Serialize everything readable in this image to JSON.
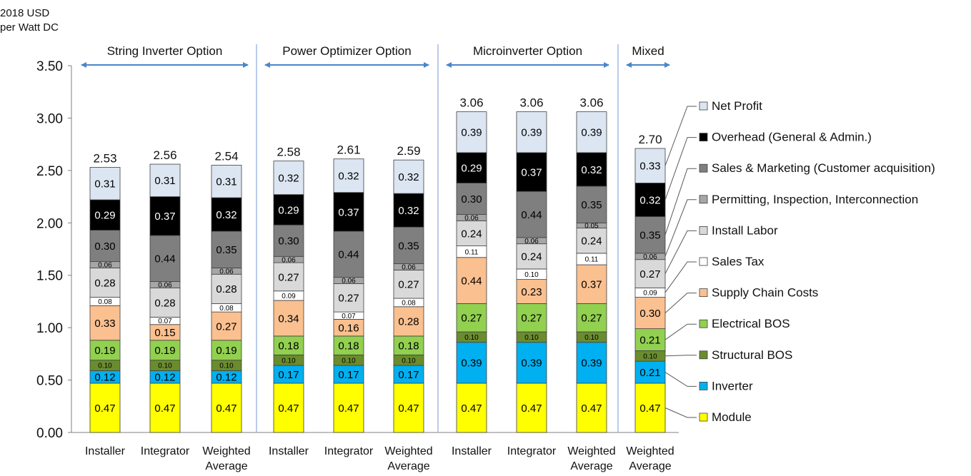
{
  "chart_data": {
    "type": "bar",
    "stacked": true,
    "ylabel_lines": [
      "2018 USD",
      "per Watt DC"
    ],
    "ylim": [
      0,
      3.5
    ],
    "yticks": [
      "0.00",
      "0.50",
      "1.00",
      "1.50",
      "2.00",
      "2.50",
      "3.00",
      "3.50"
    ],
    "groups": [
      {
        "label": "String Inverter Option",
        "bars": [
          0,
          1,
          2
        ]
      },
      {
        "label": "Power Optimizer Option",
        "bars": [
          3,
          4,
          5
        ]
      },
      {
        "label": "Microinverter Option",
        "bars": [
          6,
          7,
          8
        ]
      },
      {
        "label": "Mixed",
        "bars": [
          9
        ]
      }
    ],
    "categories": [
      [
        "Installer"
      ],
      [
        "Integrator"
      ],
      [
        "Weighted",
        "Average"
      ],
      [
        "Installer"
      ],
      [
        "Integrator"
      ],
      [
        "Weighted",
        "Average"
      ],
      [
        "Installer"
      ],
      [
        "Integrator"
      ],
      [
        "Weighted",
        "Average"
      ],
      [
        "Weighted",
        "Average"
      ]
    ],
    "totals": [
      "2.53",
      "2.56",
      "2.54",
      "2.58",
      "2.61",
      "2.59",
      "3.06",
      "3.06",
      "3.06",
      "2.70"
    ],
    "series": [
      {
        "name": "Module",
        "color": "#ffff00",
        "small": false,
        "values": [
          0.47,
          0.47,
          0.47,
          0.47,
          0.47,
          0.47,
          0.47,
          0.47,
          0.47,
          0.47
        ],
        "labels": [
          "0.47",
          "0.47",
          "0.47",
          "0.47",
          "0.47",
          "0.47",
          "0.47",
          "0.47",
          "0.47",
          "0.47"
        ]
      },
      {
        "name": "Inverter",
        "color": "#00b0f0",
        "small": false,
        "values": [
          0.12,
          0.12,
          0.12,
          0.17,
          0.17,
          0.17,
          0.39,
          0.39,
          0.39,
          0.21
        ],
        "labels": [
          "0.12",
          "0.12",
          "0.12",
          "0.17",
          "0.17",
          "0.17",
          "0.39",
          "0.39",
          "0.39",
          "0.21"
        ]
      },
      {
        "name": "Structural BOS",
        "color": "#6a8c2e",
        "small": true,
        "values": [
          0.1,
          0.1,
          0.1,
          0.1,
          0.1,
          0.1,
          0.1,
          0.1,
          0.1,
          0.1
        ],
        "labels": [
          "0.10",
          "0.10",
          "0.10",
          "0.10",
          "0.10",
          "0.10",
          "0.10",
          "0.10",
          "0.10",
          "0.10"
        ]
      },
      {
        "name": "Electrical BOS",
        "color": "#92d050",
        "small": false,
        "values": [
          0.19,
          0.19,
          0.19,
          0.18,
          0.18,
          0.18,
          0.27,
          0.27,
          0.27,
          0.21
        ],
        "labels": [
          "0.19",
          "0.19",
          "0.19",
          "0.18",
          "0.18",
          "0.18",
          "0.27",
          "0.27",
          "0.27",
          "0.21"
        ]
      },
      {
        "name": "Supply Chain Costs",
        "color": "#fac090",
        "small": false,
        "values": [
          0.33,
          0.15,
          0.27,
          0.34,
          0.16,
          0.28,
          0.44,
          0.23,
          0.37,
          0.3
        ],
        "labels": [
          "0.33",
          "0.15",
          "0.27",
          "0.34",
          "0.16",
          "0.28",
          "0.44",
          "0.23",
          "0.37",
          "0.30"
        ]
      },
      {
        "name": "Sales Tax",
        "color": "#ffffff",
        "small": true,
        "values": [
          0.08,
          0.07,
          0.08,
          0.09,
          0.07,
          0.08,
          0.11,
          0.1,
          0.11,
          0.09
        ],
        "labels": [
          "0.08",
          "0.07",
          "0.08",
          "0.09",
          "0.07",
          "0.08",
          "0.11",
          "0.10",
          "0.11",
          "0.09"
        ]
      },
      {
        "name": "Install Labor",
        "color": "#d9d9d9",
        "small": false,
        "values": [
          0.28,
          0.28,
          0.28,
          0.27,
          0.27,
          0.27,
          0.24,
          0.24,
          0.24,
          0.27
        ],
        "labels": [
          "0.28",
          "0.28",
          "0.28",
          "0.27",
          "0.27",
          "0.27",
          "0.24",
          "0.24",
          "0.24",
          "0.27"
        ]
      },
      {
        "name": "Permitting, Inspection, Interconnection",
        "color": "#a6a6a6",
        "small": true,
        "values": [
          0.06,
          0.06,
          0.06,
          0.06,
          0.06,
          0.06,
          0.06,
          0.06,
          0.05,
          0.06
        ],
        "labels": [
          "0.06",
          "0.06",
          "0.06",
          "0.06",
          "0.06",
          "0.06",
          "0.06",
          "0.06",
          "0.05",
          "0.06"
        ]
      },
      {
        "name": "Sales & Marketing (Customer acquisition)",
        "color": "#7f7f7f",
        "small": false,
        "values": [
          0.3,
          0.44,
          0.35,
          0.3,
          0.44,
          0.35,
          0.3,
          0.44,
          0.35,
          0.35
        ],
        "labels": [
          "0.30",
          "0.44",
          "0.35",
          "0.30",
          "0.44",
          "0.35",
          "0.30",
          "0.44",
          "0.35",
          "0.35"
        ]
      },
      {
        "name": "Overhead (General & Admin.)",
        "color": "#000000",
        "small": false,
        "values": [
          0.29,
          0.37,
          0.32,
          0.29,
          0.37,
          0.32,
          0.29,
          0.37,
          0.32,
          0.32
        ],
        "labels": [
          "0.29",
          "0.37",
          "0.32",
          "0.29",
          "0.37",
          "0.32",
          "0.29",
          "0.37",
          "0.32",
          "0.32"
        ]
      },
      {
        "name": "Net Profit",
        "color": "#dce6f2",
        "small": false,
        "values": [
          0.31,
          0.31,
          0.31,
          0.32,
          0.32,
          0.32,
          0.39,
          0.39,
          0.39,
          0.33
        ],
        "labels": [
          "0.31",
          "0.31",
          "0.31",
          "0.32",
          "0.32",
          "0.32",
          "0.39",
          "0.39",
          "0.39",
          "0.33"
        ]
      }
    ],
    "legend_order": [
      10,
      9,
      8,
      7,
      6,
      5,
      4,
      3,
      2,
      1,
      0
    ],
    "legend_placement": "right",
    "grid": false
  }
}
